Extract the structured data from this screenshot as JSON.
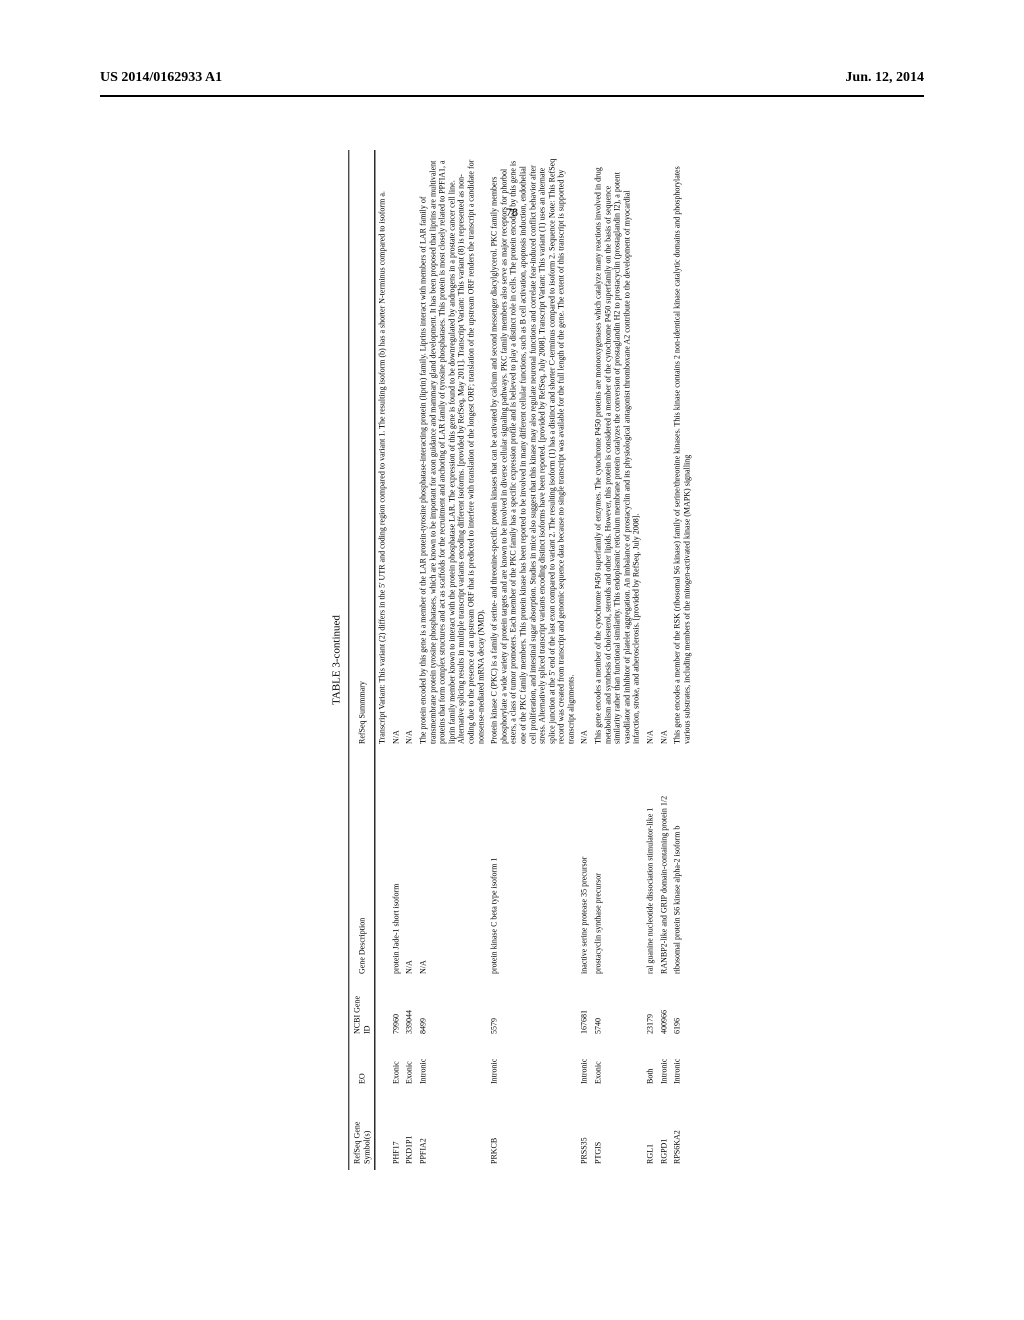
{
  "header": {
    "left": "US 2014/0162933 A1",
    "right": "Jun. 12, 2014"
  },
  "page_number": "78",
  "table": {
    "title": "TABLE 3-continued",
    "columns": [
      "RefSeq Gene Symbol(s)",
      "EO",
      "NCBI Gene ID",
      "Gene Description",
      "RefSeq Summmary"
    ],
    "rows": [
      {
        "symbol": "",
        "eo": "",
        "gene_id": "",
        "desc": "",
        "summary": "Transcript Variant: This variant (2) differs in the 5' UTR and coding region compared to variant 1. The resulting isoform (b) has a shorter N-terminus compared to isoform a."
      },
      {
        "symbol": "PHF17",
        "eo": "Exonic",
        "gene_id": "79960",
        "desc": "protein Jade-1 short isoform",
        "summary": "N/A"
      },
      {
        "symbol": "PKD1P1",
        "eo": "Exonic",
        "gene_id": "339044",
        "desc": "N/A",
        "summary": "N/A"
      },
      {
        "symbol": "PPFIA2",
        "eo": "Intronic",
        "gene_id": "8499",
        "desc": "N/A",
        "summary": "The protein encoded by this gene is a member of the LAR protein-tyrosine phosphatase-interacting protein (liprin) family. Liprins interact with members of LAR family of transmembrane protein tyrosine phosphatases, which are known to be important for axon guidance and mammary gland development. It has been proposed that liprins are multivalent proteins that form complex structures and act as scaffolds for the recruitment and anchoring of LAR family of tyrosine phosphatases. This protein is most closely related to PPFIA1, a liprin family member known to interact with the protein phosphatase LAR. The expression of this gene is found to be downregulated by androgens in a prostate cancer cell line. Alternative splicing results in multiple transcript variants encoding different isoforms. [provided by RefSeq, May 2011]. Transcript Variant: This variant (8) is represented as non-coding due to the presence of an upstream ORF that is predicted to interfere with translation of the longest ORF; translation of the upstream ORF renders the transcript a candidate for nonsense-mediated mRNA decay (NMD)."
      },
      {
        "symbol": "PRKCB",
        "eo": "Intronic",
        "gene_id": "5579",
        "desc": "protein kinase C beta type isoform 1",
        "summary": "Protein kinase C (PKC) is a family of serine- and threonine-specific protein kinases that can be activated by calcium and second messenger diacylglycerol. PKC family members phosphorylate a wide variety of protein targets and are known to be involved in diverse cellular signaling pathways. PKC family members also serve as major receptors for phorbol esters, a class of tumor promoters. Each member of the PKC family has a specific expression profile and is believed to play a distinct role in cells. The protein encoded by this gene is one of the PKC family members. This protein kinase has been reported to be involved in many different cellular functions, such as B cell activation, apoptosis induction, endothelial cell proliferation, and intestinal sugar absorption. Studies in mice also suggest that this kinase may also regulate neuronal functions and correlate fear-induced conflict behavior after stress. Alternatively spliced transcript variants encoding distinct isoforms have been reported. [provided by RefSeq, July 2008]. Transcript Variant: This variant (1) uses an alternate splice junction at the 5' end of the last exon compared to variant 2. The resulting isoform (1) has a distinct and shorter C-terminus compared to isoform 2. Sequence Note: This RefSeq record was created from transcript and genomic sequence data because no single transcript was available for the full length of the gene. The extent of this transcript is supported by transcript alignments."
      },
      {
        "symbol": "PRSS35",
        "eo": "Intronic",
        "gene_id": "167681",
        "desc": "inactive serine protease 35 precursor",
        "summary": "N/A"
      },
      {
        "symbol": "PTGIS",
        "eo": "Exonic",
        "gene_id": "5740",
        "desc": "prostacyclin synthase precursor",
        "summary": "This gene encodes a member of the cytochrome P450 superfamily of enzymes. The cytochrome P450 proteins are monooxygenases which catalyze many reactions involved in drug metabolism and synthesis of cholesterol, steroids and other lipids. However, this protein is considered a member of the cytochrome P450 superfamily on the basis of sequence similarity rather than functional similarity. This endoplasmic reticulum membrane protein catalyzes the conversion of prostaglandin H2 to prostacyclin (prostaglandin I2), a potent vasodilator and inhibitor of platelet aggregation. An imbalance of prostacyclin and its physiological antagonist thromboxane A2 contribute to the development of myocardial infarction, stroke, and atherosclerosis. [provided by RefSeq, July 2008]."
      },
      {
        "symbol": "RGL1",
        "eo": "Both",
        "gene_id": "23179",
        "desc": "ral guanine nucleotide dissociation stimulator-like 1",
        "summary": "N/A"
      },
      {
        "symbol": "RGPD1",
        "eo": "Intronic",
        "gene_id": "400966",
        "desc": "RANBP2-like and GRIP domain-containing protein 1/2",
        "summary": "N/A"
      },
      {
        "symbol": "RPS6KA2",
        "eo": "Intronic",
        "gene_id": "6196",
        "desc": "ribosomal protein S6 kinase alpha-2 isoform b",
        "summary": "This gene encodes a member of the RSK (ribosomal S6 kinase) family of serine/threonine kinases. This kinase contains 2 non-identical kinase catalytic domains and phosphorylates various substrates, including members of the mitogen-activated kinase (MAPK) signalling"
      }
    ]
  }
}
